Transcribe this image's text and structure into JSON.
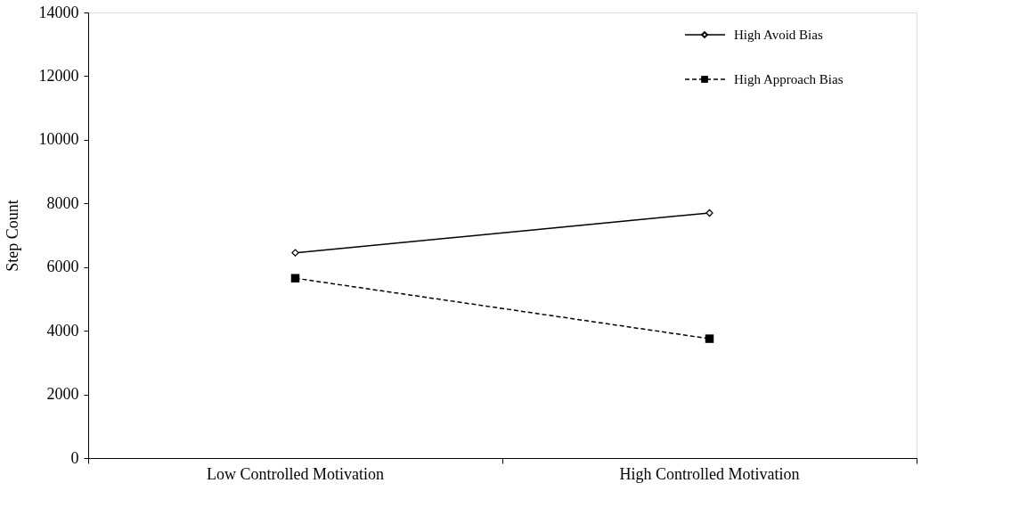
{
  "chart_data": {
    "type": "line",
    "ylabel": "Step Count",
    "categories": [
      "Low Controlled Motivation",
      "High Controlled Motivation"
    ],
    "series": [
      {
        "name": "High Avoid Bias",
        "color": "#000000",
        "values": [
          6450,
          7700
        ],
        "marker": "diamond",
        "line_style": "solid"
      },
      {
        "name": "High Approach Bias",
        "color": "#000000",
        "values": [
          5650,
          3750
        ],
        "marker": "square",
        "line_style": "dashed"
      }
    ],
    "ylim": [
      0,
      14000
    ],
    "yticks": [
      0,
      2000,
      4000,
      6000,
      8000,
      10000,
      12000,
      14000
    ],
    "grid": false,
    "legend": "top right"
  }
}
